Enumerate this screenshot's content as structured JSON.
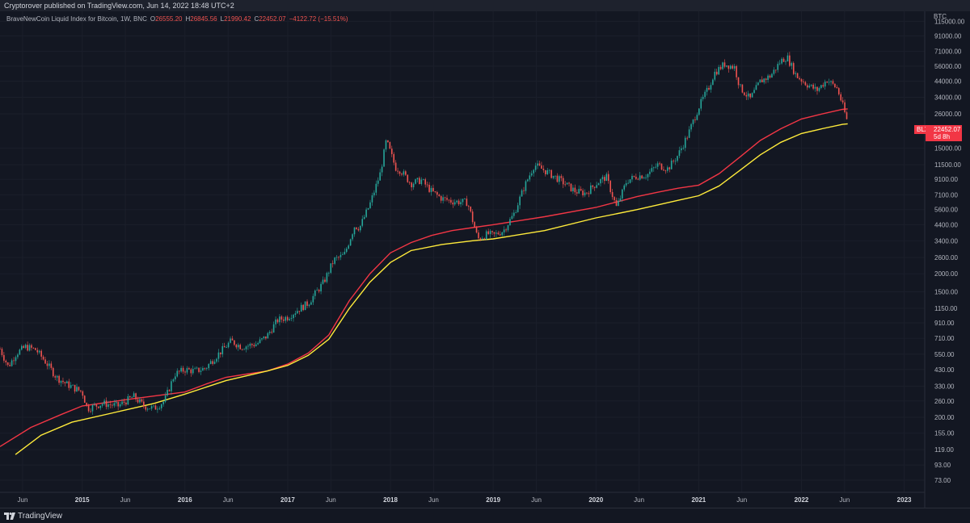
{
  "header": {
    "published": "Cryptorover published on TradingView.com, Jun 14, 2022 18:48 UTC+2"
  },
  "legend": {
    "title": "BraveNewCoin Liquid Index for Bitcoin, 1W, BNC",
    "open_label": "O",
    "open": "26555.20",
    "high_label": "H",
    "high": "26845.56",
    "low_label": "L",
    "low": "21990.42",
    "close_label": "C",
    "close": "22452.07",
    "change": "−4122.72 (−15.51%)"
  },
  "price_tag": {
    "symbol": "BLX",
    "price": "22452.07",
    "countdown": "5d 8h"
  },
  "footer": {
    "brand": "TradingView"
  },
  "colors": {
    "background": "#131722",
    "up": "#26a69a",
    "down": "#ef5350",
    "ma_red": "#f23645",
    "ma_yellow": "#ffeb3b"
  },
  "chart_data": {
    "type": "line",
    "title": "BraveNewCoin Liquid Index for Bitcoin, 1W, BNC",
    "scale": "log",
    "y_unit_label": "BTC",
    "y_ticks": [
      "115000.00",
      "91000.00",
      "71000.00",
      "56000.00",
      "44000.00",
      "34000.00",
      "26000.00",
      "15000.00",
      "11500.00",
      "9100.00",
      "7100.00",
      "5600.00",
      "4400.00",
      "3400.00",
      "2600.00",
      "2000.00",
      "1500.00",
      "1150.00",
      "910.00",
      "710.00",
      "550.00",
      "430.00",
      "330.00",
      "260.00",
      "200.00",
      "155.00",
      "119.00",
      "93.00",
      "73.00"
    ],
    "x_ticks": [
      "Jun",
      "2015",
      "Jun",
      "2016",
      "Jun",
      "2017",
      "Jun",
      "2018",
      "Jun",
      "2019",
      "Jun",
      "2020",
      "Jun",
      "2021",
      "Jun",
      "2022",
      "Jun",
      "2023"
    ],
    "x_tick_dates": [
      2014.42,
      2015.0,
      2015.42,
      2016.0,
      2016.42,
      2017.0,
      2017.42,
      2018.0,
      2018.42,
      2019.0,
      2019.42,
      2020.0,
      2020.42,
      2021.0,
      2021.42,
      2022.0,
      2022.42,
      2023.0
    ],
    "x_range": [
      2014.2,
      2023.2
    ],
    "y_range": [
      60,
      135000
    ],
    "series": [
      {
        "name": "BLX price (weekly close, approx)",
        "x": [
          2014.2,
          2014.28,
          2014.36,
          2014.45,
          2014.55,
          2014.65,
          2014.75,
          2014.85,
          2015.0,
          2015.05,
          2015.2,
          2015.35,
          2015.5,
          2015.6,
          2015.7,
          2015.8,
          2015.9,
          2016.0,
          2016.1,
          2016.2,
          2016.3,
          2016.45,
          2016.55,
          2016.7,
          2016.8,
          2016.9,
          2017.0,
          2017.08,
          2017.2,
          2017.35,
          2017.45,
          2017.55,
          2017.65,
          2017.7,
          2017.8,
          2017.9,
          2017.96,
          2018.05,
          2018.1,
          2018.2,
          2018.3,
          2018.4,
          2018.5,
          2018.6,
          2018.75,
          2018.85,
          2018.95,
          2019.0,
          2019.1,
          2019.2,
          2019.3,
          2019.4,
          2019.5,
          2019.65,
          2019.8,
          2019.9,
          2020.0,
          2020.1,
          2020.2,
          2020.3,
          2020.4,
          2020.5,
          2020.6,
          2020.7,
          2020.8,
          2020.9,
          2021.0,
          2021.1,
          2021.15,
          2021.25,
          2021.35,
          2021.4,
          2021.5,
          2021.6,
          2021.7,
          2021.8,
          2021.86,
          2021.95,
          2022.05,
          2022.15,
          2022.25,
          2022.35,
          2022.4,
          2022.45
        ],
        "y": [
          600,
          450,
          560,
          620,
          590,
          480,
          380,
          340,
          300,
          230,
          250,
          240,
          280,
          240,
          230,
          260,
          400,
          430,
          420,
          440,
          530,
          680,
          620,
          650,
          740,
          950,
          1000,
          1100,
          1250,
          1750,
          2500,
          2700,
          4300,
          4200,
          6100,
          10000,
          17000,
          11000,
          10500,
          8500,
          9000,
          7500,
          6700,
          6400,
          6300,
          3500,
          3800,
          3700,
          4000,
          5200,
          8000,
          11500,
          10500,
          9000,
          7500,
          7300,
          8500,
          9500,
          5800,
          8900,
          9600,
          9800,
          11500,
          10800,
          13500,
          19000,
          29000,
          40000,
          50000,
          58000,
          55000,
          40000,
          33000,
          44000,
          48000,
          61000,
          65000,
          48000,
          42000,
          38000,
          45000,
          39000,
          30000,
          22452
        ]
      },
      {
        "name": "Moving average (red)",
        "x": [
          2014.2,
          2014.5,
          2014.8,
          2015.0,
          2015.5,
          2016.0,
          2016.2,
          2016.4,
          2016.6,
          2016.8,
          2017.0,
          2017.2,
          2017.4,
          2017.6,
          2017.8,
          2018.0,
          2018.2,
          2018.4,
          2018.6,
          2018.8,
          2019.0,
          2019.5,
          2020.0,
          2020.4,
          2020.6,
          2020.8,
          2021.0,
          2021.2,
          2021.4,
          2021.6,
          2021.8,
          2022.0,
          2022.2,
          2022.4,
          2022.45
        ],
        "y": [
          125,
          170,
          210,
          240,
          270,
          300,
          340,
          380,
          400,
          420,
          470,
          560,
          750,
          1300,
          2000,
          2800,
          3300,
          3700,
          4000,
          4200,
          4400,
          5000,
          5800,
          6900,
          7400,
          7900,
          8300,
          10000,
          13000,
          17000,
          20500,
          24000,
          26000,
          28000,
          28200
        ]
      },
      {
        "name": "Moving average (yellow)",
        "x": [
          2014.35,
          2014.6,
          2014.9,
          2015.3,
          2015.7,
          2016.0,
          2016.4,
          2016.8,
          2017.0,
          2017.2,
          2017.4,
          2017.6,
          2017.8,
          2018.0,
          2018.2,
          2018.5,
          2018.8,
          2019.0,
          2019.5,
          2020.0,
          2020.4,
          2020.8,
          2021.0,
          2021.2,
          2021.4,
          2021.6,
          2021.8,
          2022.0,
          2022.2,
          2022.4,
          2022.45
        ],
        "y": [
          110,
          150,
          185,
          215,
          250,
          290,
          360,
          420,
          460,
          540,
          700,
          1150,
          1750,
          2400,
          2900,
          3200,
          3400,
          3500,
          4000,
          4900,
          5600,
          6500,
          7000,
          8200,
          10500,
          13500,
          16500,
          19000,
          20500,
          22000,
          22200
        ]
      }
    ]
  }
}
